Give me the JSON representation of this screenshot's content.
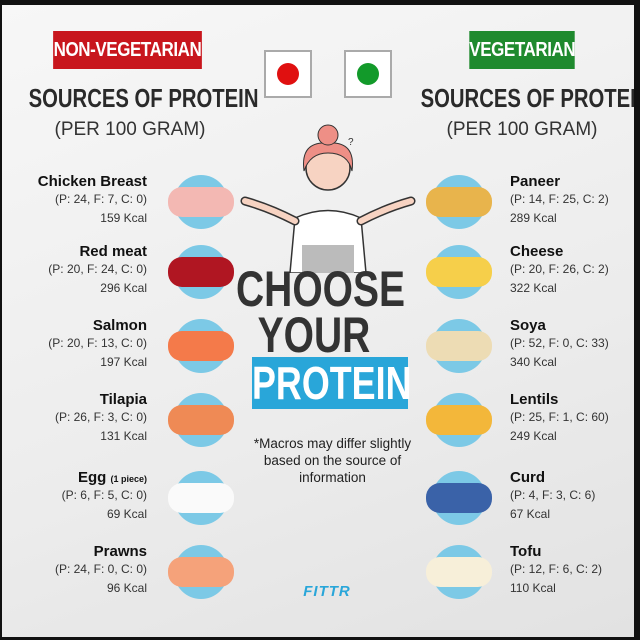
{
  "non_veg": {
    "tag": "NON-VEGETARIAN",
    "title": "SOURCES OF PROTEIN",
    "subtitle": "(PER 100 GRAM)",
    "color": "#c8161d",
    "items": [
      {
        "name": "Chicken Breast",
        "note": "",
        "macros": "(P: 24, F: 7, C: 0)",
        "kcal": "159 Kcal",
        "icon": "chicken-breast-icon"
      },
      {
        "name": "Red meat",
        "note": "",
        "macros": "(P: 20, F: 24, C: 0)",
        "kcal": "296 Kcal",
        "icon": "red-meat-icon"
      },
      {
        "name": "Salmon",
        "note": "",
        "macros": "(P: 20, F: 13, C: 0)",
        "kcal": "197 Kcal",
        "icon": "salmon-icon"
      },
      {
        "name": "Tilapia",
        "note": "",
        "macros": "(P: 26, F: 3, C: 0)",
        "kcal": "131 Kcal",
        "icon": "tilapia-icon"
      },
      {
        "name": "Egg",
        "note": "(1 piece)",
        "macros": "(P: 6, F: 5, C: 0)",
        "kcal": "69 Kcal",
        "icon": "egg-icon"
      },
      {
        "name": "Prawns",
        "note": "",
        "macros": "(P: 24, F: 0, C: 0)",
        "kcal": "96 Kcal",
        "icon": "prawns-icon"
      }
    ]
  },
  "veg": {
    "tag": "VEGETARIAN",
    "title": "SOURCES OF PROTEIN",
    "subtitle": "(PER 100 GRAM)",
    "color": "#1f8a2e",
    "items": [
      {
        "name": "Paneer",
        "macros": "(P: 14, F: 25, C: 2)",
        "kcal": "289 Kcal",
        "icon": "paneer-icon"
      },
      {
        "name": "Cheese",
        "macros": "(P: 20, F: 26, C: 2)",
        "kcal": "322 Kcal",
        "icon": "cheese-icon"
      },
      {
        "name": "Soya",
        "macros": "(P: 52, F: 0, C: 33)",
        "kcal": "340 Kcal",
        "icon": "soya-icon"
      },
      {
        "name": "Lentils",
        "macros": "(P: 25, F: 1, C: 60)",
        "kcal": "249 Kcal",
        "icon": "lentils-icon"
      },
      {
        "name": "Curd",
        "macros": "(P: 4, F: 3, C: 6)",
        "kcal": "67 Kcal",
        "icon": "curd-icon"
      },
      {
        "name": "Tofu",
        "macros": "(P: 12, F: 6, C: 2)",
        "kcal": "110 Kcal",
        "icon": "tofu-icon"
      }
    ]
  },
  "center": {
    "line1": "CHOOSE",
    "line2": "YOUR",
    "line3": "PROTEIN",
    "accent": "#29a6d9",
    "note": "*Macros may differ slightly based on the source of information",
    "brand": "FITTR"
  }
}
